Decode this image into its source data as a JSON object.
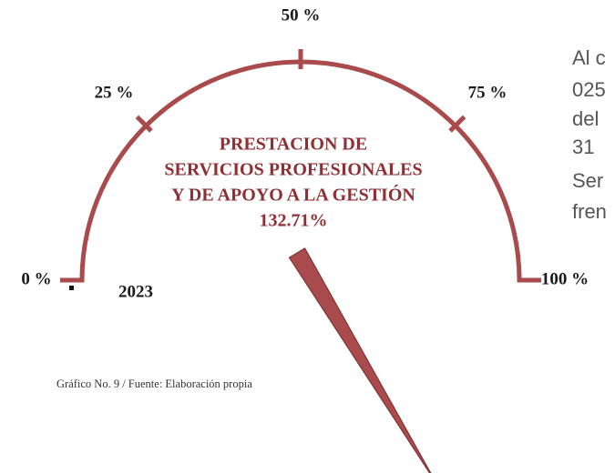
{
  "chart_data": {
    "type": "gauge",
    "title_lines": [
      "PRESTACION DE",
      "SERVICIOS PROFESIONALES",
      "Y DE APOYO A LA GESTIÓN"
    ],
    "value": 132.71,
    "value_label": "132.71%",
    "category": "2023",
    "lim": [
      0,
      100
    ],
    "ticks": [
      {
        "value": 0,
        "label": "0 %"
      },
      {
        "value": 25,
        "label": "25 %"
      },
      {
        "value": 50,
        "label": "50 %"
      },
      {
        "value": 75,
        "label": "75 %"
      },
      {
        "value": 100,
        "label": "100 %"
      }
    ],
    "color": "#a94a4c",
    "caption": "Gráfico No. 9 / Fuente: Elaboración propia"
  },
  "side_text": [
    "Al c",
    "025",
    "del",
    "31",
    "Ser",
    "fren"
  ]
}
